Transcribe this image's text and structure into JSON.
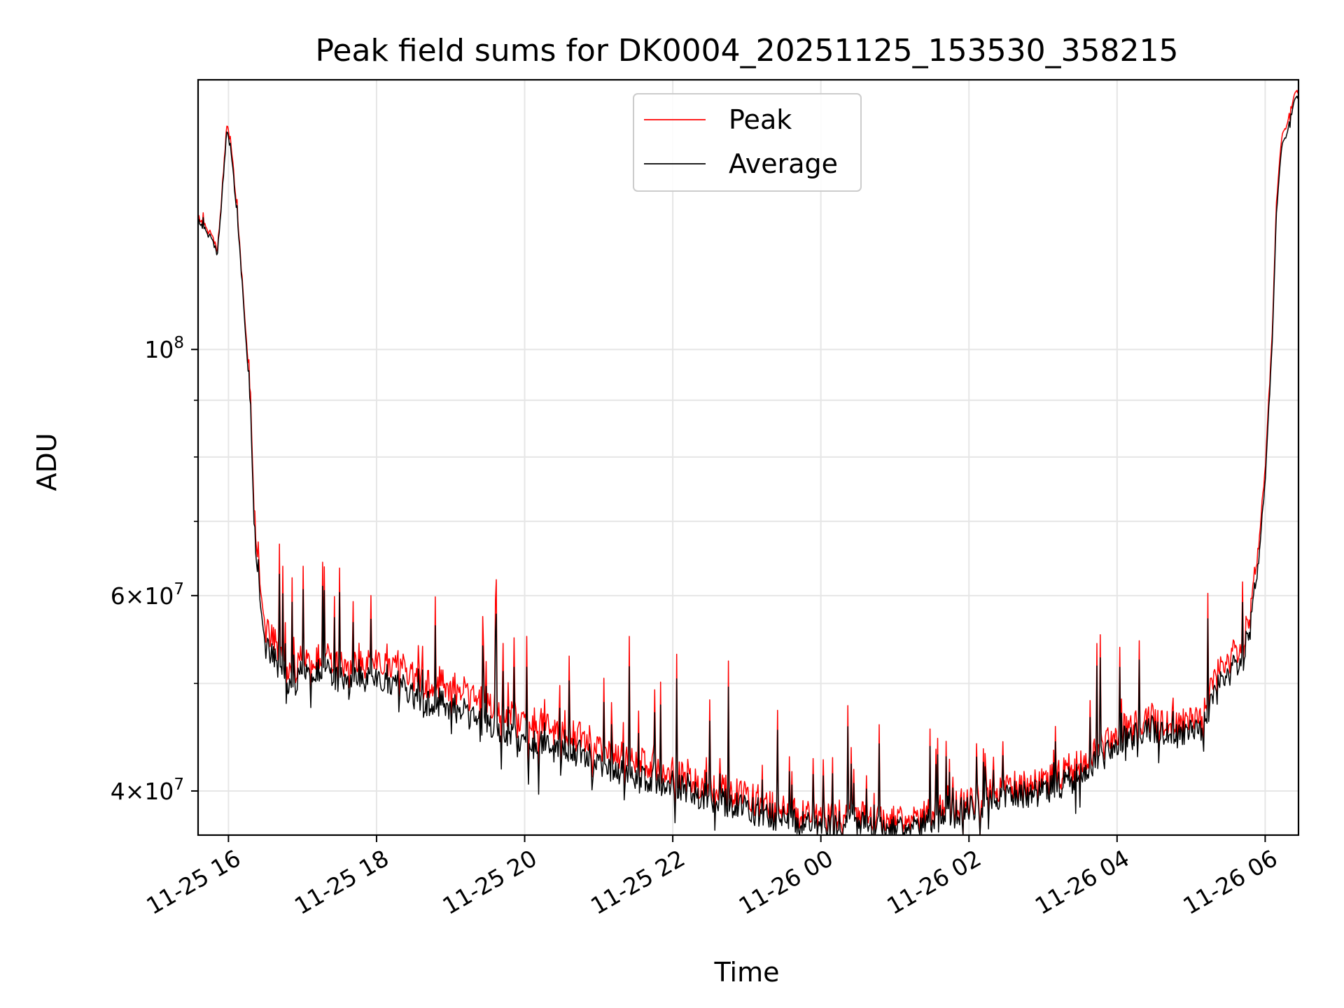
{
  "chart_data": {
    "type": "line",
    "title": "Peak field sums for DK0004_20251125_153530_358215",
    "xlabel": "Time",
    "ylabel": "ADU",
    "yscale": "log",
    "grid": true,
    "legend_position": "top-center",
    "x_range_hours_since_2025_11_25_00": [
      15.59,
      30.45
    ],
    "ylim": [
      36500000,
      175000000
    ],
    "x_ticks": [
      {
        "hour": 16,
        "label": "11-25 16"
      },
      {
        "hour": 18,
        "label": "11-25 18"
      },
      {
        "hour": 20,
        "label": "11-25 20"
      },
      {
        "hour": 22,
        "label": "11-25 22"
      },
      {
        "hour": 24,
        "label": "11-26 00"
      },
      {
        "hour": 26,
        "label": "11-26 02"
      },
      {
        "hour": 28,
        "label": "11-26 04"
      },
      {
        "hour": 30,
        "label": "11-26 06"
      }
    ],
    "y_ticks_major": [
      {
        "value": 100000000,
        "base": "10",
        "exp": "8"
      },
      {
        "value": 60000000,
        "mant": "6",
        "exp": "7"
      },
      {
        "value": 40000000,
        "mant": "4",
        "exp": "7"
      }
    ],
    "y_ticks_minor": [
      50000000,
      70000000,
      80000000,
      90000000
    ],
    "series": [
      {
        "name": "Peak",
        "color": "#ff0000",
        "hours": [
          15.59,
          15.65,
          15.75,
          15.85,
          15.9,
          15.98,
          16.05,
          16.15,
          16.2,
          16.3,
          16.35,
          16.42,
          16.5,
          16.6,
          16.7,
          16.85,
          17.0,
          17.2,
          17.5,
          17.8,
          18.0,
          18.3,
          18.6,
          18.9,
          19.2,
          19.5,
          19.8,
          20.0,
          20.2,
          20.6,
          21.0,
          21.5,
          22.0,
          22.5,
          23.0,
          23.5,
          24.0,
          24.5,
          25.0,
          25.3,
          25.6,
          26.0,
          26.3,
          26.6,
          27.0,
          27.4,
          27.8,
          28.1,
          28.4,
          28.8,
          29.1,
          29.25,
          29.4,
          29.55,
          29.7,
          29.8,
          29.9,
          30.0,
          30.1,
          30.15,
          30.22,
          30.3,
          30.38,
          30.45
        ],
        "values": [
          132000000,
          130000000,
          128000000,
          123000000,
          135000000,
          160000000,
          150000000,
          125000000,
          112000000,
          90000000,
          70000000,
          62000000,
          56000000,
          55000000,
          53000000,
          51000000,
          53000000,
          53000000,
          52000000,
          52000000,
          53000000,
          52000000,
          50000000,
          50000000,
          49000000,
          48000000,
          47000000,
          46000000,
          46000000,
          45000000,
          44000000,
          42500000,
          41500000,
          40500000,
          39500000,
          38500000,
          38000000,
          38000000,
          37500000,
          37800000,
          38500000,
          39000000,
          40000000,
          40500000,
          40500000,
          42000000,
          44000000,
          45500000,
          46500000,
          46000000,
          46000000,
          49000000,
          52000000,
          53000000,
          54000000,
          58000000,
          65000000,
          78000000,
          105000000,
          135000000,
          155000000,
          160000000,
          168000000,
          172000000
        ]
      },
      {
        "name": "Average",
        "color": "#000000",
        "hours": [
          15.59,
          15.65,
          15.75,
          15.85,
          15.9,
          15.98,
          16.05,
          16.15,
          16.2,
          16.3,
          16.35,
          16.42,
          16.5,
          16.6,
          16.7,
          16.85,
          17.0,
          17.2,
          17.5,
          17.8,
          18.0,
          18.3,
          18.6,
          18.9,
          19.2,
          19.5,
          19.8,
          20.0,
          20.2,
          20.6,
          21.0,
          21.5,
          22.0,
          22.5,
          23.0,
          23.5,
          24.0,
          24.5,
          25.0,
          25.3,
          25.6,
          26.0,
          26.3,
          26.6,
          27.0,
          27.4,
          27.8,
          28.1,
          28.4,
          28.8,
          29.1,
          29.25,
          29.4,
          29.55,
          29.7,
          29.8,
          29.9,
          30.0,
          30.1,
          30.15,
          30.22,
          30.3,
          30.38,
          30.45
        ],
        "values": [
          131000000,
          129000000,
          127000000,
          122000000,
          134000000,
          158000000,
          148000000,
          124000000,
          111000000,
          88000000,
          68000000,
          60000000,
          54000000,
          53000000,
          51000000,
          49500000,
          51500000,
          51500000,
          50500000,
          50500000,
          51000000,
          50000000,
          48000000,
          48000000,
          47000000,
          46000000,
          45000000,
          44000000,
          44000000,
          43500000,
          42500000,
          41000000,
          40500000,
          39500000,
          38500000,
          37800000,
          37200000,
          37300000,
          36800000,
          37200000,
          37800000,
          38500000,
          39200000,
          39800000,
          39800000,
          41000000,
          43000000,
          44500000,
          45500000,
          45000000,
          45000000,
          47500000,
          50500000,
          51500000,
          52500000,
          56500000,
          63000000,
          76000000,
          103000000,
          132000000,
          152000000,
          157000000,
          166000000,
          170000000
        ]
      }
    ]
  }
}
